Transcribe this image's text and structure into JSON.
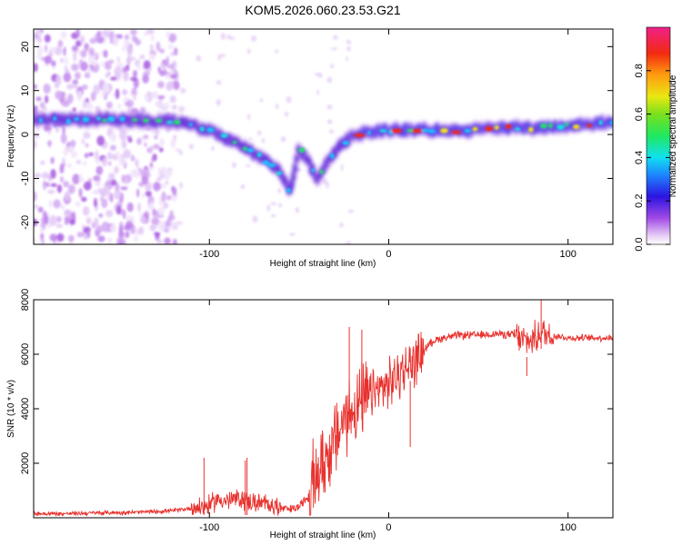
{
  "title": "KOM5.2026.060.23.53.G21",
  "chart_data": [
    {
      "type": "heatmap",
      "title": "KOM5.2026.060.23.53.G21",
      "xlabel": "Height of straight line (km)",
      "ylabel": "Frequency (Hz)",
      "xlim": [
        -198,
        125
      ],
      "ylim": [
        -25,
        24
      ],
      "xticks": [
        -100,
        0,
        100
      ],
      "xtick_labels": [
        "-100",
        "0",
        "100"
      ],
      "yticks": [
        -20,
        -10,
        0,
        10,
        20
      ],
      "ytick_labels": [
        "-20",
        "-10",
        "0",
        "10",
        "20"
      ],
      "colorbar": {
        "label": "Normalized spectral amplitude",
        "range": [
          0,
          1
        ],
        "ticks": [
          0.0,
          0.2,
          0.4,
          0.6,
          0.8
        ],
        "tick_labels": [
          "0.0",
          "0.2",
          "0.4",
          "0.6",
          "0.8"
        ]
      },
      "ridge": {
        "x": [
          -198,
          -180,
          -160,
          -140,
          -120,
          -100,
          -90,
          -80,
          -70,
          -60,
          -55,
          -50,
          -45,
          -40,
          -35,
          -30,
          -25,
          -20,
          -10,
          0,
          20,
          40,
          60,
          80,
          100,
          125
        ],
        "y": [
          3.5,
          3.3,
          3.5,
          3.2,
          3.0,
          1.0,
          -1.0,
          -3.0,
          -5.5,
          -9.0,
          -13.0,
          -3.0,
          -6.0,
          -10.5,
          -7.0,
          -4.0,
          -2.0,
          0.0,
          0.5,
          1.0,
          1.0,
          0.8,
          1.5,
          1.5,
          2.0,
          2.8
        ]
      }
    },
    {
      "type": "line",
      "xlabel": "Height of straight line (km)",
      "ylabel": "SNR (10 * v/v)",
      "xlim": [
        -198,
        125
      ],
      "ylim": [
        0,
        8000
      ],
      "xticks": [
        -100,
        0,
        100
      ],
      "xtick_labels": [
        "-100",
        "0",
        "100"
      ],
      "yticks": [
        2000,
        4000,
        6000,
        8000
      ],
      "ytick_labels": [
        "2000",
        "4000",
        "6000",
        "8000"
      ],
      "series": [
        {
          "name": "SNR",
          "color": "#e8312d",
          "x": [
            -198,
            -180,
            -160,
            -140,
            -120,
            -110,
            -100,
            -95,
            -90,
            -85,
            -80,
            -75,
            -70,
            -65,
            -60,
            -55,
            -50,
            -45,
            -40,
            -35,
            -30,
            -25,
            -20,
            -15,
            -10,
            -5,
            0,
            5,
            10,
            15,
            20,
            25,
            30,
            40,
            50,
            60,
            70,
            75,
            80,
            85,
            90,
            100,
            110,
            125
          ],
          "y": [
            150,
            150,
            180,
            200,
            260,
            350,
            450,
            700,
            600,
            700,
            650,
            550,
            500,
            500,
            350,
            300,
            400,
            800,
            1600,
            2200,
            2800,
            3600,
            4000,
            4200,
            4500,
            4700,
            4900,
            5200,
            5500,
            5800,
            6200,
            6500,
            6600,
            6700,
            6700,
            6750,
            6700,
            6500,
            6500,
            6800,
            6700,
            6600,
            6600,
            6600
          ]
        }
      ],
      "spikes": [
        {
          "x": -103,
          "y": 2200
        },
        {
          "x": -80,
          "y": 2100
        },
        {
          "x": -79,
          "y": 2200
        },
        {
          "x": -37,
          "y": 3200
        },
        {
          "x": -22,
          "y": 7000
        },
        {
          "x": -15,
          "y": 6900
        },
        {
          "x": 12,
          "y": 2600
        },
        {
          "x": 77,
          "y": 5200
        },
        {
          "x": 85,
          "y": 8000
        }
      ]
    }
  ]
}
